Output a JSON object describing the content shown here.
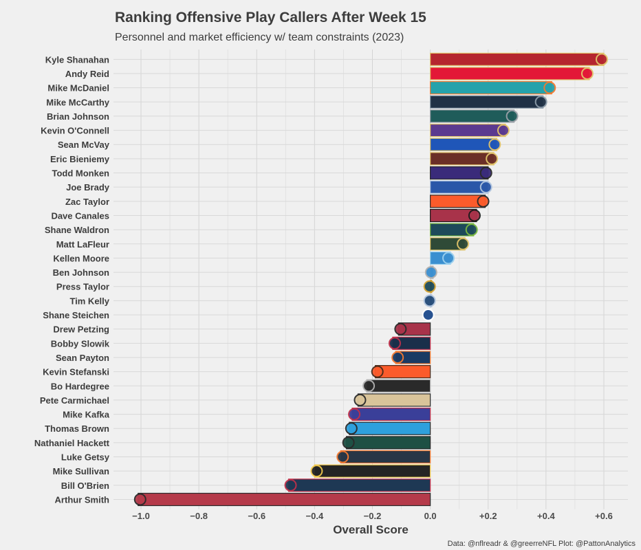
{
  "chart_data": {
    "type": "bar",
    "orientation": "horizontal",
    "title": "Ranking Offensive Play Callers After Week 15",
    "subtitle": "Personnel and market efficiency w/ team constraints (2023)",
    "xlabel": "Overall Score",
    "caption": "Data: @nflreadr & @greerreNFL Plot: @PattonAnalytics",
    "xlim": [
      -1.05,
      0.68
    ],
    "xticks": [
      -1.0,
      -0.8,
      -0.6,
      -0.4,
      -0.2,
      0.0,
      0.2,
      0.4,
      0.6
    ],
    "xtick_labels": [
      "−1.0",
      "−0.8",
      "−0.6",
      "−0.4",
      "−0.2",
      "0.0",
      "+0.2",
      "+0.4",
      "+0.6"
    ],
    "grid": true,
    "legend": "none",
    "categories": [
      "Kyle Shanahan",
      "Andy Reid",
      "Mike McDaniel",
      "Mike McCarthy",
      "Brian Johnson",
      "Kevin O'Connell",
      "Sean McVay",
      "Eric Bieniemy",
      "Todd Monken",
      "Joe Brady",
      "Zac Taylor",
      "Dave Canales",
      "Shane Waldron",
      "Matt LaFleur",
      "Kellen Moore",
      "Ben Johnson",
      "Press Taylor",
      "Tim Kelly",
      "Shane Steichen",
      "Drew Petzing",
      "Bobby Slowik",
      "Sean Payton",
      "Kevin Stefanski",
      "Bo Hardegree",
      "Pete Carmichael",
      "Mike Kafka",
      "Thomas Brown",
      "Nathaniel Hackett",
      "Luke Getsy",
      "Mike Sullivan",
      "Bill O'Brien",
      "Arthur Smith"
    ],
    "values": [
      0.6,
      0.55,
      0.42,
      0.39,
      0.29,
      0.26,
      0.23,
      0.22,
      0.2,
      0.2,
      0.19,
      0.16,
      0.15,
      0.12,
      0.07,
      0.01,
      0.005,
      0.005,
      0.0,
      -0.11,
      -0.13,
      -0.12,
      -0.19,
      -0.22,
      -0.25,
      -0.27,
      -0.28,
      -0.29,
      -0.31,
      -0.4,
      -0.49,
      -1.01
    ],
    "colors": [
      "#b5262f",
      "#e31837",
      "#26a2ab",
      "#203146",
      "#1f5c5a",
      "#5b3a8f",
      "#1f56b8",
      "#6b2f27",
      "#3a2b7a",
      "#2a57a8",
      "#fb5b2b",
      "#a8334a",
      "#1d4a5a",
      "#2f4a37",
      "#3a8fd0",
      "#3a8fd0",
      "#1d4a5a",
      "#234a78",
      "#1d4a8c",
      "#a8334a",
      "#1a2f4a",
      "#1a3a63",
      "#fb5b2b",
      "#2a2a2a",
      "#d9c49a",
      "#3a3f99",
      "#2ea0dd",
      "#1e5044",
      "#283646",
      "#242424",
      "#1e3854",
      "#b53a4a"
    ],
    "outlines": [
      "#e2c46a",
      "#e2c46a",
      "#f47a30",
      "#8a9aa8",
      "#9aa0a8",
      "#e2c46a",
      "#e2c46a",
      "#e2c46a",
      "#2a2a2a",
      "#b0c4de",
      "#2a2a2a",
      "#1a1a1a",
      "#7ab840",
      "#e2c46a",
      "#9ad0ee",
      "#b0b0b0",
      "#d0a030",
      "#b0c4de",
      "#ffffff",
      "#2a2a2a",
      "#c0304a",
      "#f47a30",
      "#4a2a1a",
      "#b0b0b0",
      "#2a2a2a",
      "#c0304a",
      "#2a2a2a",
      "#2a2a2a",
      "#f47a30",
      "#f2c94c",
      "#c0304a",
      "#2a2a2a"
    ]
  }
}
